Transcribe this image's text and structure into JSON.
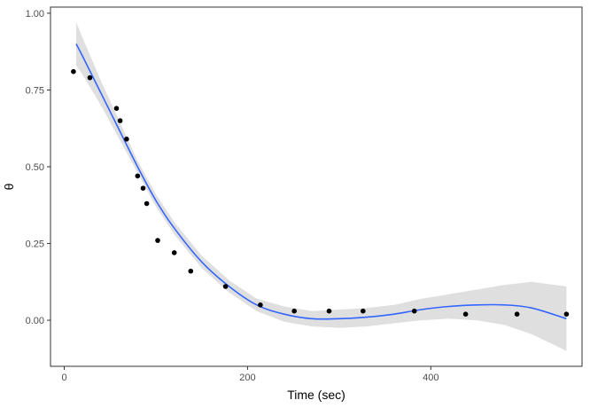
{
  "chart_data": {
    "type": "scatter",
    "title": "",
    "xlabel": "Time (sec)",
    "ylabel": "θ",
    "xlim": [
      -15,
      565
    ],
    "ylim": [
      -0.15,
      1.02
    ],
    "x_ticks": [
      0,
      200,
      400
    ],
    "x_tick_labels": [
      "0",
      "200",
      "400"
    ],
    "y_ticks": [
      0,
      0.25,
      0.5,
      0.75,
      1
    ],
    "y_tick_labels": [
      "0.00",
      "0.25",
      "0.50",
      "0.75",
      "1.00"
    ],
    "grid": false,
    "legend": "none",
    "series": [
      {
        "kind": "points",
        "x": [
          10,
          28,
          57,
          61,
          68,
          80,
          86,
          90,
          102,
          120,
          138,
          176,
          214,
          251,
          289,
          326,
          382,
          438,
          494,
          548
        ],
        "y": [
          0.81,
          0.79,
          0.69,
          0.65,
          0.59,
          0.47,
          0.43,
          0.38,
          0.26,
          0.22,
          0.16,
          0.11,
          0.05,
          0.03,
          0.03,
          0.03,
          0.03,
          0.02,
          0.02,
          0.02
        ]
      },
      {
        "kind": "smooth",
        "x": [
          13,
          20,
          40,
          60,
          80,
          100,
          120,
          150,
          180,
          210,
          240,
          270,
          300,
          330,
          360,
          390,
          420,
          450,
          480,
          510,
          548
        ],
        "y": [
          0.9,
          0.86,
          0.74,
          0.62,
          0.5,
          0.39,
          0.3,
          0.19,
          0.11,
          0.05,
          0.02,
          0.005,
          0.005,
          0.01,
          0.02,
          0.035,
          0.045,
          0.05,
          0.05,
          0.04,
          0.005
        ],
        "lower": [
          0.83,
          0.8,
          0.7,
          0.59,
          0.48,
          0.37,
          0.28,
          0.17,
          0.09,
          0.03,
          -0.005,
          -0.02,
          -0.025,
          -0.02,
          -0.01,
          0.0,
          0.005,
          0.0,
          -0.015,
          -0.045,
          -0.1
        ],
        "upper": [
          0.97,
          0.92,
          0.78,
          0.65,
          0.52,
          0.41,
          0.32,
          0.21,
          0.13,
          0.07,
          0.045,
          0.03,
          0.035,
          0.04,
          0.05,
          0.07,
          0.085,
          0.1,
          0.115,
          0.125,
          0.11
        ]
      }
    ],
    "colors": {
      "points": "#000000",
      "smooth_line": "#3366FF",
      "confidence_band": "#d9d9d9",
      "panel_border": "#333333",
      "tick_text": "#4d4d4d"
    }
  }
}
